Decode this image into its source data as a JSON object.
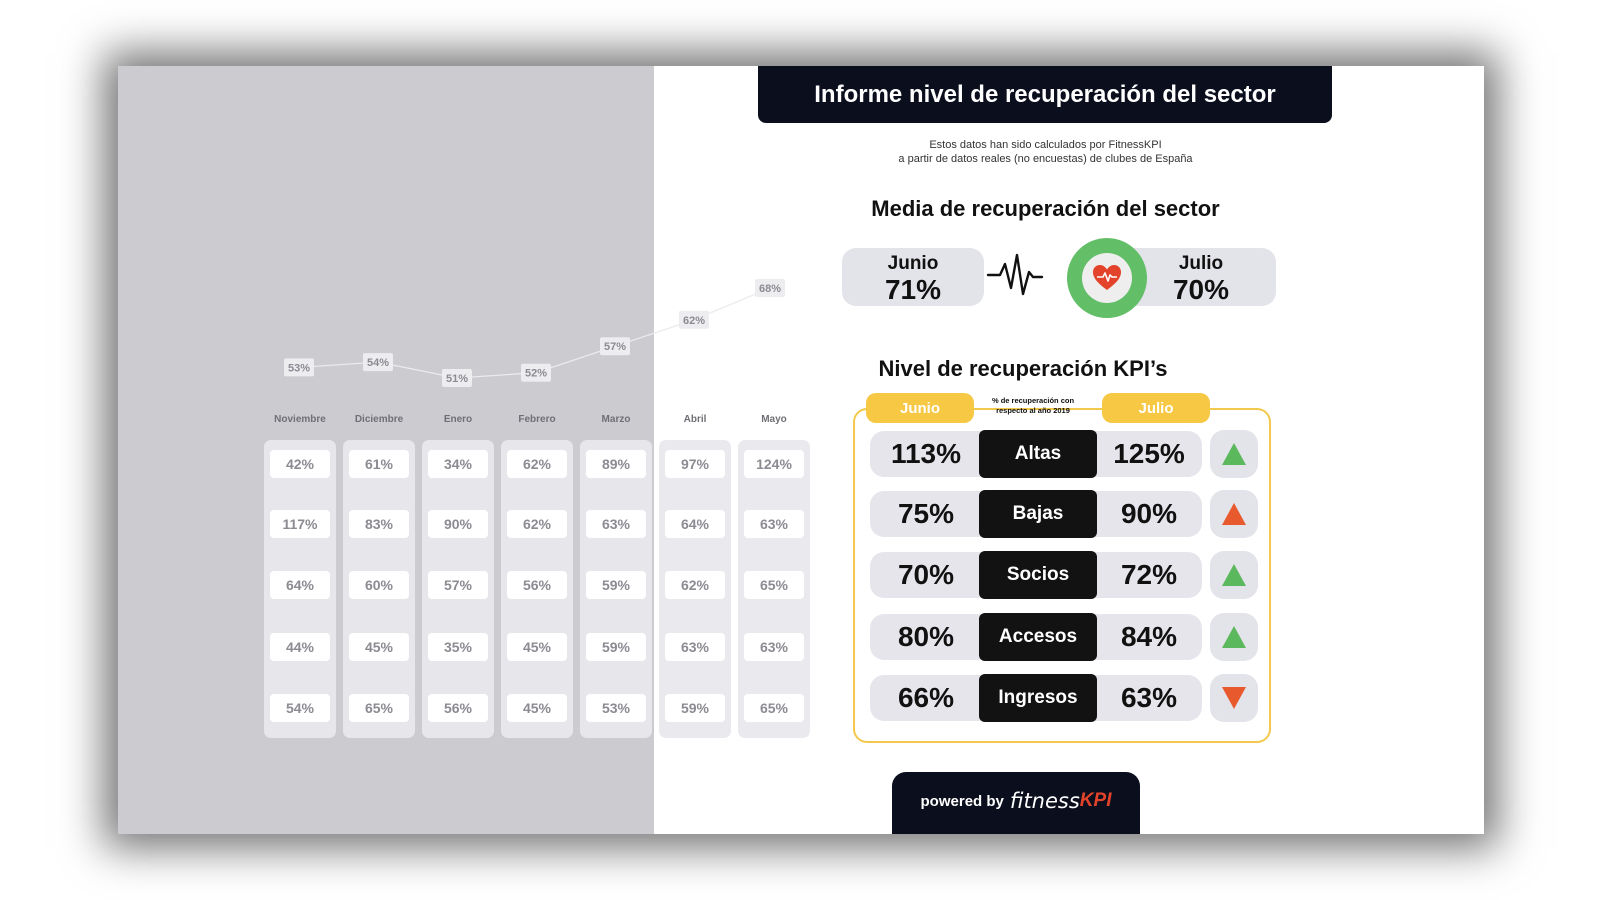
{
  "header": {
    "title": "Informe nivel de recuperación del sector",
    "subtitle_line1": "Estos datos han sido calculados por FitnessKPI",
    "subtitle_line2": "a partir de datos reales (no encuestas) de clubes de España"
  },
  "average": {
    "title": "Media de recuperación del sector",
    "june_label": "Junio",
    "june_value": "71%",
    "july_label": "Julio",
    "july_value": "70%"
  },
  "kpis": {
    "title": "Nivel de recuperación KPI’s",
    "june_tag": "Junio",
    "july_tag": "Julio",
    "caption": "% de recuperación con respecto al año 2019",
    "rows": [
      {
        "name": "Altas",
        "june": "113%",
        "july": "125%",
        "trend": "up",
        "trend_color": "#5cb85c"
      },
      {
        "name": "Bajas",
        "june": "75%",
        "july": "90%",
        "trend": "up",
        "trend_color": "#e85a2e"
      },
      {
        "name": "Socios",
        "june": "70%",
        "july": "72%",
        "trend": "up",
        "trend_color": "#5cb85c"
      },
      {
        "name": "Accesos",
        "june": "80%",
        "july": "84%",
        "trend": "up",
        "trend_color": "#5cb85c"
      },
      {
        "name": "Ingresos",
        "june": "66%",
        "july": "63%",
        "trend": "down",
        "trend_color": "#e85a2e"
      }
    ]
  },
  "footer": {
    "powered_by": "powered by",
    "brand_part1": "fitness",
    "brand_part2": "KPI"
  },
  "colors": {
    "accent_yellow": "#f7c844",
    "heart_ring_green": "#62be67",
    "heart_red": "#e2432a",
    "dark_navy": "#0b0f1d"
  },
  "chart_data": {
    "type": "line",
    "categories": [
      "Noviembre",
      "Diciembre",
      "Enero",
      "Febrero",
      "Marzo",
      "Abril",
      "Mayo"
    ],
    "series": [
      {
        "values": [
          53,
          54,
          51,
          52,
          57,
          62,
          68
        ]
      }
    ],
    "point_labels": [
      "53%",
      "54%",
      "51%",
      "52%",
      "57%",
      "62%",
      "68%"
    ],
    "table": [
      [
        "42%",
        "61%",
        "34%",
        "62%",
        "89%",
        "97%",
        "124%"
      ],
      [
        "117%",
        "83%",
        "90%",
        "62%",
        "63%",
        "64%",
        "63%"
      ],
      [
        "64%",
        "60%",
        "57%",
        "56%",
        "59%",
        "62%",
        "65%"
      ],
      [
        "44%",
        "45%",
        "35%",
        "45%",
        "59%",
        "63%",
        "63%"
      ],
      [
        "54%",
        "65%",
        "56%",
        "45%",
        "53%",
        "59%",
        "65%"
      ]
    ],
    "grid": false
  }
}
